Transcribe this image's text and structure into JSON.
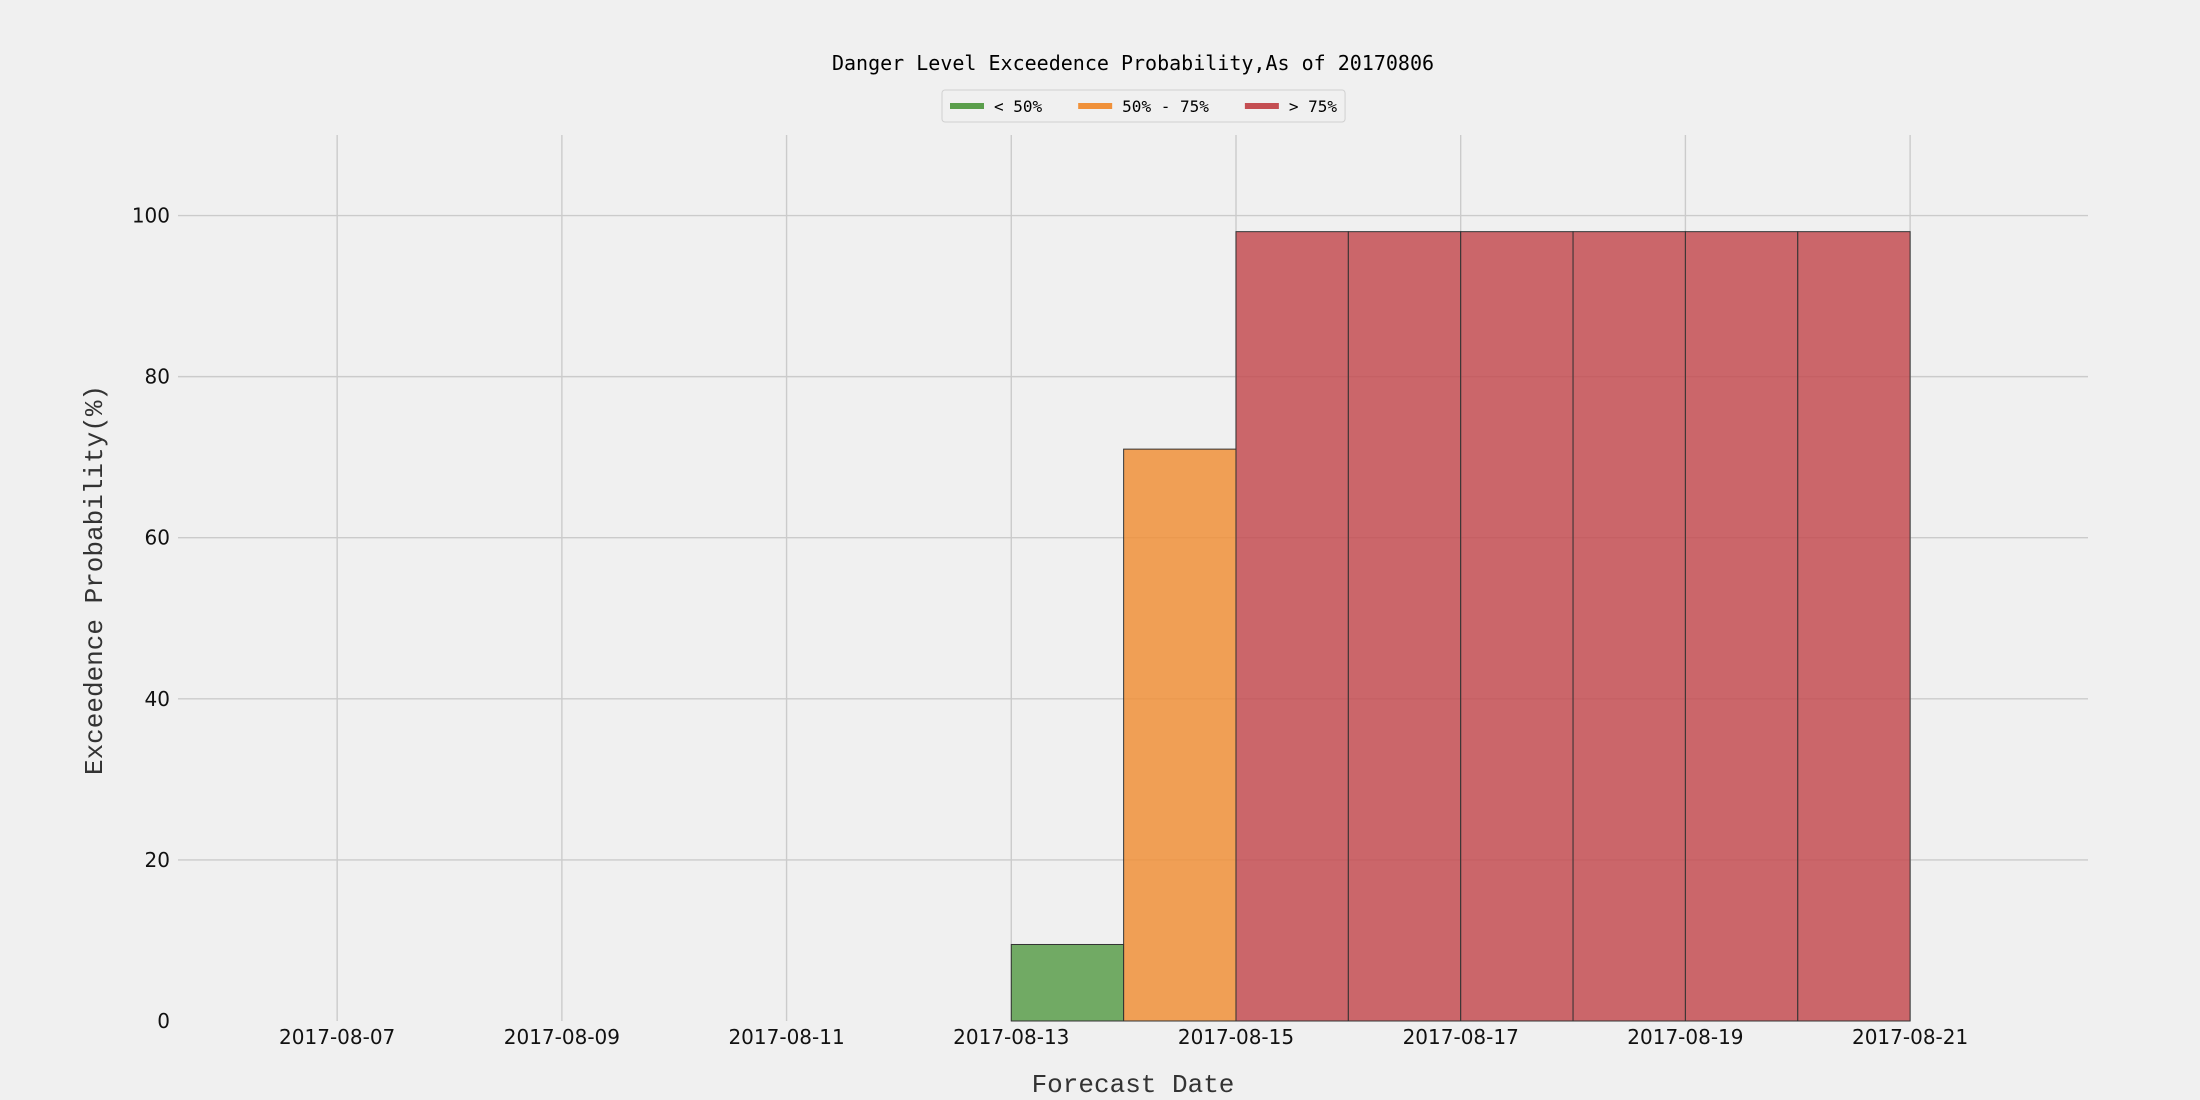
{
  "chart_data": {
    "type": "bar",
    "title": "Danger Level Exceedence Probability,As of 20170806",
    "xlabel": "Forecast Date",
    "ylabel": "Exceedence Probability(%)",
    "ylim": [
      0,
      110
    ],
    "yticks": [
      0,
      20,
      40,
      60,
      80,
      100
    ],
    "xlim": [
      "2017-08-05T14:00",
      "2017-08-22T14:00"
    ],
    "xticks": [
      "2017-08-07",
      "2017-08-09",
      "2017-08-11",
      "2017-08-13",
      "2017-08-15",
      "2017-08-17",
      "2017-08-19",
      "2017-08-21"
    ],
    "grid": true,
    "legend_position": "top-center",
    "legend": [
      {
        "label": "< 50%",
        "color": "#5a9e4b"
      },
      {
        "label": "50% - 75%",
        "color": "#f0913a"
      },
      {
        "label": "> 75%",
        "color": "#c44e52"
      }
    ],
    "bars": [
      {
        "x": "2017-08-14",
        "value": 9.5,
        "category": "< 50%"
      },
      {
        "x": "2017-08-15",
        "value": 71,
        "category": "50% - 75%"
      },
      {
        "x": "2017-08-16",
        "value": 98,
        "category": "> 75%"
      },
      {
        "x": "2017-08-17",
        "value": 98,
        "category": "> 75%"
      },
      {
        "x": "2017-08-18",
        "value": 98,
        "category": "> 75%"
      },
      {
        "x": "2017-08-19",
        "value": 98,
        "category": "> 75%"
      },
      {
        "x": "2017-08-20",
        "value": 98,
        "category": "> 75%"
      },
      {
        "x": "2017-08-21",
        "value": 98,
        "category": "> 75%"
      }
    ]
  }
}
